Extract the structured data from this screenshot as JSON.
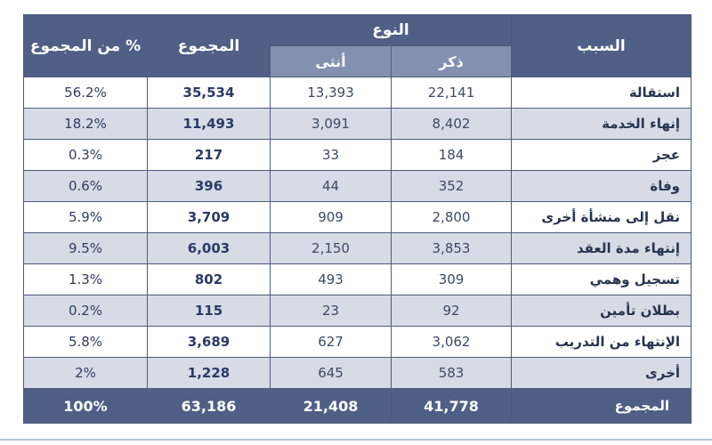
{
  "header": {
    "reason": "السبب",
    "gender": "النوع",
    "male": "ذكر",
    "female": "أنثى",
    "total": "المجموع",
    "pct": "% من المجموع"
  },
  "rows": [
    {
      "reason": "استقالة",
      "male": "22,141",
      "female": "13,393",
      "total": "35,534",
      "pct": "56.2%"
    },
    {
      "reason": "إنهاء الخدمة",
      "male": "8,402",
      "female": "3,091",
      "total": "11,493",
      "pct": "18.2%"
    },
    {
      "reason": "عجز",
      "male": "184",
      "female": "33",
      "total": "217",
      "pct": "0.3%"
    },
    {
      "reason": "وفاة",
      "male": "352",
      "female": "44",
      "total": "396",
      "pct": "0.6%"
    },
    {
      "reason": "نقل إلى منشأة أخرى",
      "male": "2,800",
      "female": "909",
      "total": "3,709",
      "pct": "5.9%"
    },
    {
      "reason": "إنتهاء مدة العقد",
      "male": "3,853",
      "female": "2,150",
      "total": "6,003",
      "pct": "9.5%"
    },
    {
      "reason": "تسجيل وهمي",
      "male": "309",
      "female": "493",
      "total": "802",
      "pct": "1.3%"
    },
    {
      "reason": "بطلان تأمين",
      "male": "92",
      "female": "23",
      "total": "115",
      "pct": "0.2%"
    },
    {
      "reason": "الإنتهاء من التدريب",
      "male": "3,062",
      "female": "627",
      "total": "3,689",
      "pct": "5.8%"
    },
    {
      "reason": "أخرى",
      "male": "583",
      "female": "645",
      "total": "1,228",
      "pct": "2%"
    }
  ],
  "footer": {
    "reason": "المجموع",
    "male": "41,778",
    "female": "21,408",
    "total": "63,186",
    "pct": "100%"
  }
}
